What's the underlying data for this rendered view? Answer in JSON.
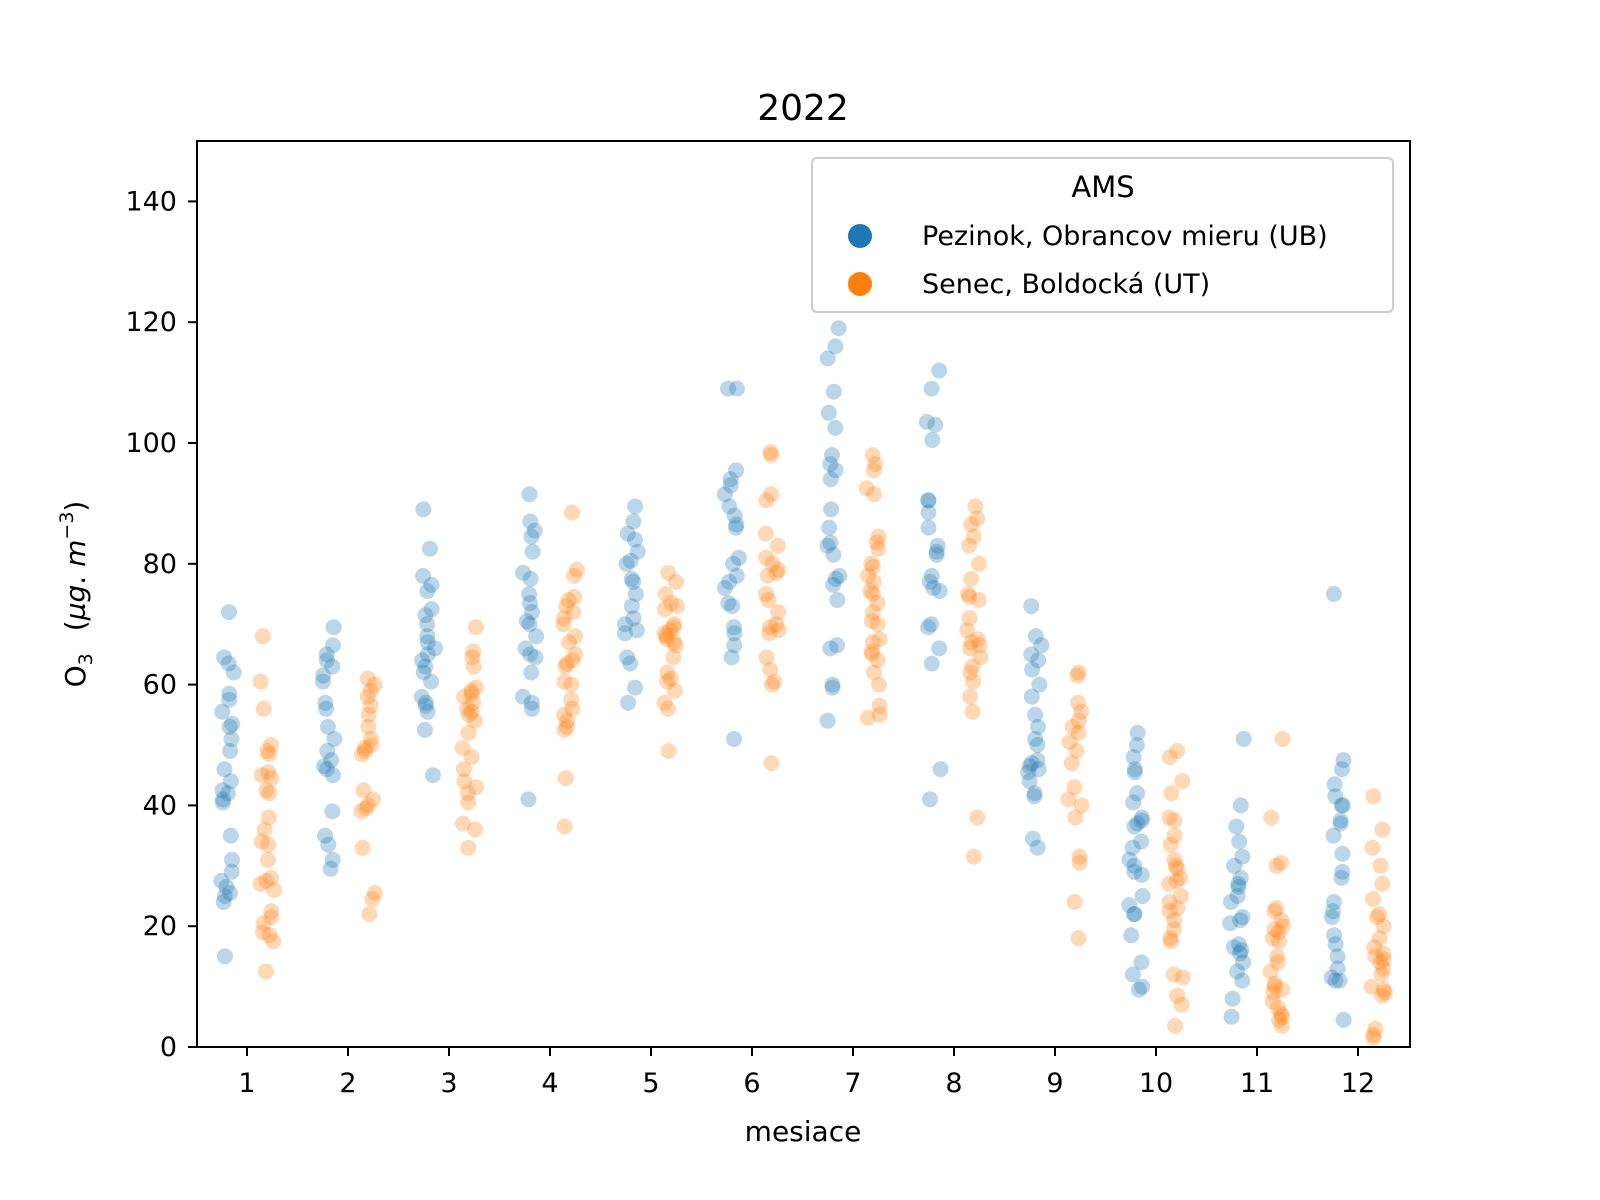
{
  "chart_data": {
    "type": "scatter",
    "title": "2022",
    "xlabel": "mesiace",
    "ylabel_main": "O",
    "ylabel_sub": "3",
    "ylabel_unit_open": "(",
    "ylabel_unit_mu": "µg",
    "ylabel_unit_dot": ". ",
    "ylabel_unit_m": "m",
    "ylabel_unit_exp": "−3",
    "ylabel_unit_close": ")",
    "ylim": [
      0,
      150
    ],
    "yticks": [
      "0",
      "20",
      "40",
      "60",
      "80",
      "100",
      "120",
      "140"
    ],
    "categories": [
      "1",
      "2",
      "3",
      "4",
      "5",
      "6",
      "7",
      "8",
      "9",
      "10",
      "11",
      "12"
    ],
    "legend": {
      "title": "AMS",
      "placement": "top-right"
    },
    "colors": {
      "Pezinok": "#1f77b4",
      "Senec": "#ff7f0e"
    },
    "marker_alpha": 0.3,
    "series": [
      {
        "name": "Pezinok, Obrancov mieru (UB)",
        "offset": -0.2,
        "values": [
          [
            72,
            64.5,
            63.5,
            62,
            58.5,
            57.5,
            55.5,
            53.5,
            53,
            51,
            49,
            46,
            44,
            42.5,
            42,
            41,
            40.5,
            35,
            31,
            29,
            27.5,
            26.5,
            25.5,
            25,
            24,
            15
          ],
          [
            69.5,
            66.5,
            65,
            64,
            63,
            61.5,
            60.5,
            57,
            56,
            53,
            51,
            49,
            47.5,
            46.5,
            46,
            45,
            39,
            35,
            33.5,
            31,
            29.5
          ],
          [
            89,
            82.5,
            78,
            76.5,
            75.5,
            72.5,
            71.5,
            70,
            68,
            67,
            66,
            65,
            64,
            63,
            62,
            60.5,
            58,
            57,
            56.5,
            55.5,
            52.5,
            45
          ],
          [
            91.5,
            87,
            85.5,
            84.5,
            82,
            78.5,
            77.5,
            75,
            73.5,
            72,
            70.5,
            70,
            68,
            66,
            65,
            64.5,
            62,
            58,
            57,
            56,
            41
          ],
          [
            89.5,
            87,
            85,
            84,
            82,
            80.5,
            80,
            77.5,
            77,
            75,
            73,
            71,
            70,
            69,
            68.5,
            64.5,
            63.5,
            59.5,
            57
          ],
          [
            109,
            109,
            95.5,
            94,
            93,
            91.5,
            89.5,
            88,
            86.5,
            86,
            81,
            80,
            78,
            77,
            76,
            73.5,
            73,
            69.5,
            68.5,
            66.5,
            64.5,
            51
          ],
          [
            119,
            116,
            114,
            108.5,
            105,
            102.5,
            98,
            96.5,
            95.5,
            94,
            89,
            86,
            83.5,
            83,
            81.5,
            78,
            77.5,
            76.5,
            74,
            66.5,
            66,
            60,
            59.5,
            54
          ],
          [
            112,
            109,
            103.5,
            103,
            100.5,
            90.5,
            90.5,
            88.5,
            86,
            83,
            82,
            81.5,
            78,
            77,
            76,
            75.5,
            70,
            69.5,
            66,
            63.5,
            46,
            41
          ],
          [
            73,
            68,
            66.5,
            65,
            64,
            62.5,
            60,
            58,
            55,
            53,
            51,
            50,
            47.5,
            47,
            46.5,
            46,
            45.5,
            44,
            42,
            41.5,
            34.5,
            33
          ],
          [
            52,
            50,
            48,
            46,
            45.5,
            42,
            40.5,
            38,
            37.5,
            37,
            36.5,
            34,
            33,
            31,
            30,
            29,
            28.5,
            25,
            23.5,
            22,
            22,
            18.5,
            14,
            12,
            10,
            9.5
          ],
          [
            51,
            40,
            36.5,
            34,
            31.5,
            30,
            28,
            27,
            26.5,
            25,
            24,
            21.5,
            21,
            20.5,
            17,
            16.5,
            16,
            15.5,
            14,
            12.5,
            11,
            8,
            5
          ],
          [
            75,
            47.5,
            46,
            43.5,
            41.5,
            40,
            40,
            37.5,
            37,
            35,
            32,
            29,
            28,
            24,
            22.5,
            21.5,
            18.5,
            17,
            15,
            13,
            11.5,
            11,
            11,
            4.5
          ]
        ]
      },
      {
        "name": "Senec, Boldocká (UT)",
        "offset": 0.2,
        "values": [
          [
            68,
            60.5,
            56,
            50,
            49,
            48.5,
            45.5,
            45,
            44.5,
            42.5,
            42,
            38,
            36,
            34,
            33.5,
            31,
            28,
            27.5,
            27,
            26,
            22.5,
            21.5,
            20.5,
            19,
            18.5,
            17.5,
            12.5
          ],
          [
            61,
            60,
            59,
            58,
            56.5,
            55,
            53,
            51,
            50,
            49.5,
            49,
            48.5,
            42.5,
            41,
            40,
            39.5,
            39,
            33,
            25.5,
            24.5,
            22
          ],
          [
            69.5,
            65.5,
            64.5,
            63,
            59.5,
            59,
            58.5,
            58,
            57,
            56,
            55.5,
            55,
            54,
            52,
            49.5,
            48,
            46,
            44,
            43,
            42,
            40.5,
            37,
            36,
            33
          ],
          [
            88.5,
            79,
            78,
            74.5,
            74,
            73,
            72,
            71,
            70,
            68,
            67,
            65,
            64,
            63.5,
            63,
            60.5,
            60,
            57.5,
            56,
            55,
            54,
            53,
            52.5,
            44.5,
            36.5
          ],
          [
            78.5,
            77,
            75,
            73.5,
            73,
            72.5,
            70,
            69.5,
            69,
            68.5,
            68,
            67.5,
            67,
            66.5,
            64.5,
            62,
            61,
            60.5,
            59,
            57,
            56,
            49
          ],
          [
            98.5,
            98,
            91.5,
            90.5,
            85,
            83,
            81,
            80,
            79,
            78.5,
            78,
            75,
            74,
            72,
            70,
            69.5,
            69,
            68.5,
            64.5,
            62.5,
            60.5,
            60,
            47
          ],
          [
            98,
            96.5,
            95.5,
            92.5,
            91.5,
            84.5,
            83.5,
            82.5,
            80,
            79.5,
            78,
            77,
            75.5,
            75,
            73.5,
            72,
            70.5,
            70,
            67.5,
            67,
            65.5,
            65,
            64,
            62,
            60,
            56.5,
            55,
            54.5
          ],
          [
            89.5,
            87.5,
            86.5,
            84.5,
            83,
            80,
            77.5,
            75,
            74.5,
            74,
            71,
            69,
            67.5,
            67,
            66.5,
            66,
            64.5,
            63,
            62,
            60.5,
            58,
            55.5,
            38,
            31.5
          ],
          [
            62,
            61.5,
            57,
            55.5,
            54,
            53,
            52,
            50.5,
            49,
            47,
            43,
            41,
            40,
            38,
            31.5,
            30.5,
            24,
            18
          ],
          [
            49,
            48,
            44,
            42,
            38,
            37.5,
            35,
            33.5,
            31,
            30,
            29.5,
            28,
            27.5,
            27,
            25,
            24,
            23,
            22.5,
            21,
            19.5,
            18,
            17.5,
            12,
            11.5,
            8.5,
            7,
            3.5
          ],
          [
            51,
            38,
            30.5,
            30,
            23,
            22.5,
            21,
            20,
            19.5,
            19,
            18,
            17.5,
            15,
            14,
            12.5,
            10.5,
            10,
            9.5,
            9,
            7.5,
            6.5,
            5.5,
            5,
            4.5,
            3.5
          ],
          [
            41.5,
            36,
            33,
            30,
            27,
            24.5,
            22,
            21.5,
            20,
            18,
            16.5,
            15.5,
            15,
            14.5,
            14,
            13,
            12,
            10,
            9.5,
            9,
            8.5,
            3,
            2,
            1.5
          ]
        ]
      }
    ]
  }
}
